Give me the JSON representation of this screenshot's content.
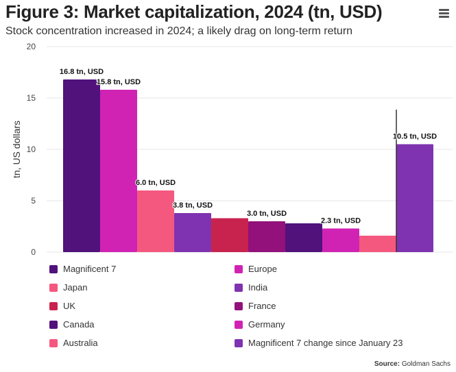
{
  "header": {
    "title": "Figure 3: Market capitalization, 2024 (tn, USD)",
    "subtitle": "Stock concentration increased in 2024; a likely drag on long-term return",
    "menu_icon": "hamburger-menu-icon"
  },
  "chart_data": {
    "type": "bar",
    "title": "Figure 3: Market capitalization, 2024 (tn, USD)",
    "subtitle": "Stock concentration increased in 2024; a likely drag on long-term return",
    "xlabel": "",
    "ylabel": "tn, US dollars",
    "ylim": [
      0,
      20
    ],
    "yticks": [
      0,
      5,
      10,
      15,
      20
    ],
    "grid": true,
    "legend_position": "bottom",
    "categories": [
      "Magnificent 7",
      "Europe",
      "Japan",
      "India",
      "UK",
      "France",
      "Canada",
      "Germany",
      "Australia",
      "Magnificent 7 change since January 23"
    ],
    "values": [
      16.8,
      15.8,
      6.0,
      3.8,
      3.3,
      3.0,
      2.8,
      2.3,
      1.6,
      10.5
    ],
    "colors": [
      "#51127c",
      "#d023b4",
      "#f5587f",
      "#7f33b0",
      "#c8234f",
      "#92117a",
      "#51127c",
      "#d023b4",
      "#f5587f",
      "#7f33b0"
    ],
    "data_labels": [
      "16.8 tn, USD",
      "15.8 tn, USD",
      "6.0 tn, USD",
      "3.8 tn, USD",
      "",
      "3.0 tn, USD",
      "",
      "2.3 tn, USD",
      "",
      "10.5 tn, USD"
    ],
    "separator_before_index": 9
  },
  "legend": [
    {
      "label": "Magnificent 7",
      "color": "#51127c"
    },
    {
      "label": "Europe",
      "color": "#d023b4"
    },
    {
      "label": "Japan",
      "color": "#f5587f"
    },
    {
      "label": "India",
      "color": "#7f33b0"
    },
    {
      "label": "UK",
      "color": "#c8234f"
    },
    {
      "label": "France",
      "color": "#92117a"
    },
    {
      "label": "Canada",
      "color": "#51127c"
    },
    {
      "label": "Germany",
      "color": "#d023b4"
    },
    {
      "label": "Australia",
      "color": "#f5587f"
    },
    {
      "label": "Magnificent 7 change since January 23",
      "color": "#7f33b0"
    }
  ],
  "source": {
    "prefix": "Source:",
    "text": "Goldman Sachs"
  }
}
